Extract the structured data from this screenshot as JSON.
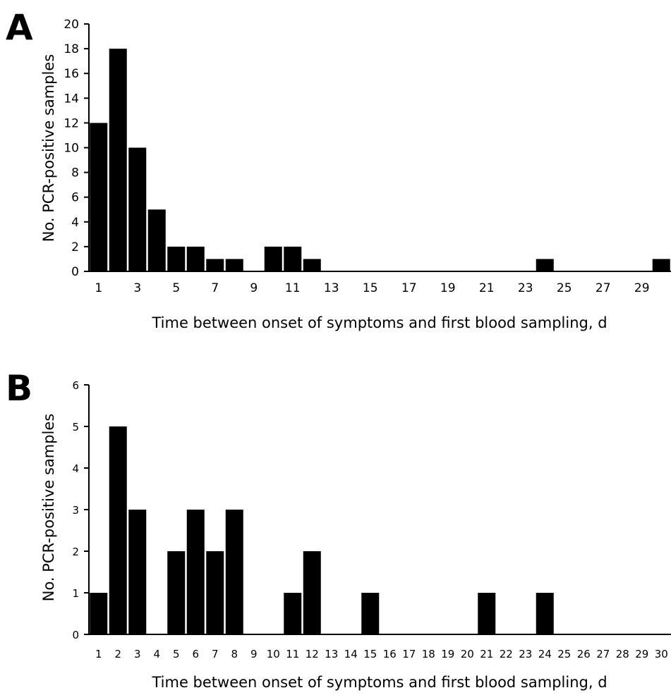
{
  "chart_data": [
    {
      "type": "bar",
      "panel_label": "A",
      "xlabel": "Time between onset of symptoms and first blood sampling, d",
      "ylabel": "No. PCR-positive samples",
      "ylim": [
        0,
        20
      ],
      "y_ticks": [
        "0",
        "2",
        "4",
        "6",
        "8",
        "10",
        "12",
        "14",
        "16",
        "18",
        "20"
      ],
      "x_tick_labels": [
        "1",
        "3",
        "5",
        "7",
        "9",
        "11",
        "13",
        "15",
        "17",
        "19",
        "21",
        "23",
        "25",
        "27",
        "29"
      ],
      "categories": [
        1,
        2,
        3,
        4,
        5,
        6,
        7,
        8,
        9,
        10,
        11,
        12,
        13,
        14,
        15,
        16,
        17,
        18,
        19,
        20,
        21,
        22,
        23,
        24,
        25,
        26,
        27,
        28,
        29,
        30
      ],
      "values": [
        12,
        18,
        10,
        5,
        2,
        2,
        1,
        1,
        0,
        2,
        2,
        1,
        0,
        0,
        0,
        0,
        0,
        0,
        0,
        0,
        0,
        0,
        0,
        1,
        0,
        0,
        0,
        0,
        0,
        1
      ],
      "grid": false,
      "legend": "none"
    },
    {
      "type": "bar",
      "panel_label": "B",
      "xlabel": "Time between onset of symptoms and first blood sampling, d",
      "ylabel": "No. PCR-positive samples",
      "ylim": [
        0,
        6
      ],
      "y_ticks": [
        "0",
        "1",
        "2",
        "3",
        "4",
        "5",
        "6"
      ],
      "x_tick_labels": [
        "1",
        "2",
        "3",
        "4",
        "5",
        "6",
        "7",
        "8",
        "9",
        "10",
        "11",
        "12",
        "13",
        "14",
        "15",
        "16",
        "17",
        "18",
        "19",
        "20",
        "21",
        "22",
        "23",
        "24",
        "25",
        "26",
        "27",
        "28",
        "29",
        "30"
      ],
      "categories": [
        1,
        2,
        3,
        4,
        5,
        6,
        7,
        8,
        9,
        10,
        11,
        12,
        13,
        14,
        15,
        16,
        17,
        18,
        19,
        20,
        21,
        22,
        23,
        24,
        25,
        26,
        27,
        28,
        29,
        30
      ],
      "values": [
        1,
        5,
        3,
        0,
        2,
        3,
        2,
        3,
        0,
        0,
        1,
        2,
        0,
        0,
        1,
        0,
        0,
        0,
        0,
        0,
        1,
        0,
        0,
        1,
        0,
        0,
        0,
        0,
        0,
        0
      ],
      "grid": false,
      "legend": "none"
    }
  ]
}
